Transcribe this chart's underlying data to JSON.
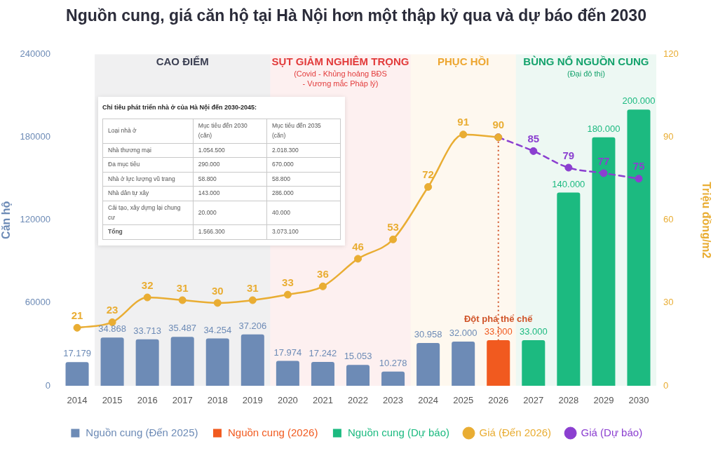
{
  "chart_data": [
    {
      "type": "bar",
      "title": "Nguồn cung, giá căn hộ tại Hà Nội hơn một thập kỷ qua và dự báo đến 2030",
      "ylabel": "Căn hộ",
      "y2label": "Triệu đồng/m2",
      "categories": [
        "2014",
        "2015",
        "2016",
        "2017",
        "2018",
        "2019",
        "2020",
        "2021",
        "2022",
        "2023",
        "2024",
        "2025",
        "2026",
        "2027",
        "2028",
        "2029",
        "2030"
      ],
      "series": [
        {
          "name": "Nguồn cung (Đến 2025)",
          "type": "bar",
          "color": "#6d8bb6",
          "values": [
            17179,
            34868,
            33713,
            35487,
            34254,
            37206,
            17974,
            17242,
            15053,
            10278,
            30958,
            32000,
            null,
            null,
            null,
            null,
            null
          ],
          "value_labels": [
            "17.179",
            "34.868",
            "33.713",
            "35.487",
            "34.254",
            "37.206",
            "17.974",
            "17.242",
            "15.053",
            "10.278",
            "30.958",
            "32.000",
            null,
            null,
            null,
            null,
            null
          ]
        },
        {
          "name": "Nguồn cung (2026)",
          "type": "bar",
          "color": "#f15a1f",
          "values": [
            null,
            null,
            null,
            null,
            null,
            null,
            null,
            null,
            null,
            null,
            null,
            null,
            33000,
            null,
            null,
            null,
            null
          ],
          "value_labels": [
            null,
            null,
            null,
            null,
            null,
            null,
            null,
            null,
            null,
            null,
            null,
            null,
            "33.000",
            null,
            null,
            null,
            null
          ]
        },
        {
          "name": "Nguồn cung (Dự báo)",
          "type": "bar",
          "color": "#1cba80",
          "values": [
            null,
            null,
            null,
            null,
            null,
            null,
            null,
            null,
            null,
            null,
            null,
            null,
            null,
            33000,
            140000,
            180000,
            200000
          ],
          "value_labels": [
            null,
            null,
            null,
            null,
            null,
            null,
            null,
            null,
            null,
            null,
            null,
            null,
            null,
            "33.000",
            "140.000",
            "180.000",
            "200.000"
          ]
        },
        {
          "name": "Giá (Đến 2026)",
          "type": "line",
          "axis": "y2",
          "color": "#e9ad33",
          "values": [
            21,
            23,
            32,
            31,
            30,
            31,
            33,
            36,
            46,
            53,
            72,
            91,
            90,
            null,
            null,
            null,
            null
          ],
          "value_labels": [
            "21",
            "23",
            "32",
            "31",
            "30",
            "31",
            "33",
            "36",
            "46",
            "53",
            "72",
            "91",
            "90",
            null,
            null,
            null,
            null
          ]
        },
        {
          "name": "Giá (Dự báo)",
          "type": "line",
          "axis": "y2",
          "color": "#8b3fd0",
          "line_style": "dashed",
          "values": [
            null,
            null,
            null,
            null,
            null,
            null,
            null,
            null,
            null,
            null,
            null,
            null,
            90,
            85,
            79,
            77,
            75
          ],
          "value_labels": [
            null,
            null,
            null,
            null,
            null,
            null,
            null,
            null,
            null,
            null,
            null,
            null,
            null,
            "85",
            "79",
            "77",
            "75"
          ]
        }
      ],
      "ylim": [
        0,
        240000
      ],
      "yticks": [
        0,
        60000,
        120000,
        180000,
        240000
      ],
      "y2lim": [
        0,
        120
      ],
      "y2ticks": [
        0,
        30,
        60,
        90,
        120
      ],
      "marker": "circle",
      "legend": "bottom",
      "bands": [
        {
          "axis": "x",
          "from": "2015",
          "to": "2019",
          "label": "CAO ĐIỂM",
          "color": "#3b3f52"
        },
        {
          "axis": "x",
          "from": "2020",
          "to": "2023",
          "label": "SỤT GIẢM NGHIÊM TRỌNG\n(Covid - Khủng hoảng BĐS - Vương mắc Pháp lý)",
          "color": "#e23b3b"
        },
        {
          "axis": "x",
          "from": "2024",
          "to": "2026",
          "label": "PHỤC HỒI",
          "color": "#eda630"
        },
        {
          "axis": "x",
          "from": "2027",
          "to": "2030",
          "label": "BÙNG NỔ NGUỒN CUNG\n(Đại đô thị)",
          "color": "#14a26c"
        }
      ],
      "ref_lines": [
        {
          "axis": "x",
          "value": "2026",
          "label": "Đột phá thể chế",
          "color": "#d0552a",
          "line_style": "dotted"
        }
      ]
    },
    {
      "type": "other",
      "title": "Chỉ tiêu phát triển nhà ở của Hà Nội đến 2030-2045:",
      "ylabel": "Loại nhà ở",
      "categories": [
        "Mục tiêu đến 2030 (căn)",
        "Mục tiêu đến 2035 (căn)"
      ],
      "y_categories": [
        "Nhà thương mại",
        "Đa mục tiêu",
        "Nhà ở lực lượng vũ trang",
        "Nhà dân tự xây",
        "Cải tạo, xây dựng lại chung cư",
        "Tổng"
      ],
      "cell_labels": [
        [
          "1.054.500",
          "2.018.300"
        ],
        [
          "290.000",
          "670.000"
        ],
        [
          "58.800",
          "58.800"
        ],
        [
          "143.000",
          "286.000"
        ],
        [
          "20.000",
          "40.000"
        ],
        [
          "1.566.300",
          "3.073.100"
        ]
      ]
    }
  ]
}
